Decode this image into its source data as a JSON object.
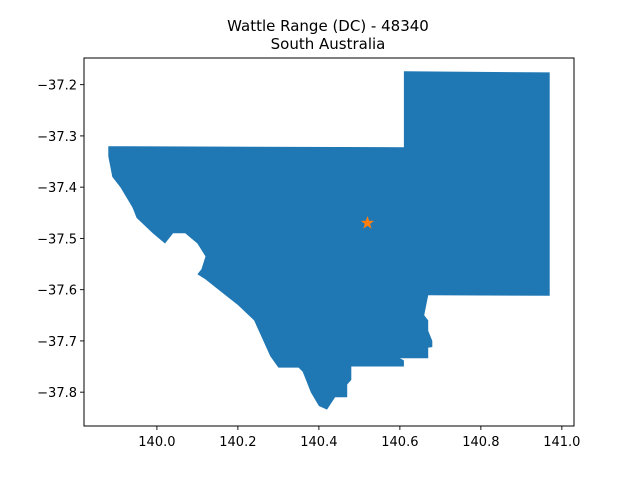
{
  "figure": {
    "title_line1": "Wattle Range (DC) - 48340",
    "title_line2": "South Australia"
  },
  "map": {
    "x_range": [
      139.82,
      141.03
    ],
    "y_range": [
      -37.866,
      -37.148
    ],
    "x_ticks": [
      140.0,
      140.2,
      140.4,
      140.6,
      140.8,
      141.0
    ],
    "x_tick_labels": [
      "140.0",
      "140.2",
      "140.4",
      "140.6",
      "140.8",
      "141.0"
    ],
    "y_ticks": [
      -37.2,
      -37.3,
      -37.4,
      -37.5,
      -37.6,
      -37.7,
      -37.8
    ],
    "y_tick_labels": [
      "−37.2",
      "−37.3",
      "−37.4",
      "−37.5",
      "−37.6",
      "−37.7",
      "−37.8"
    ],
    "region_color": "#1f77b4",
    "marker_color": "#ff7f0e",
    "marker_icon": "star-icon",
    "marker_position": {
      "lon": 140.52,
      "lat": -37.47
    },
    "region_outline": [
      [
        140.61,
        -37.174
      ],
      [
        140.97,
        -37.176
      ],
      [
        140.97,
        -37.612
      ],
      [
        140.67,
        -37.611
      ],
      [
        140.66,
        -37.65
      ],
      [
        140.67,
        -37.66
      ],
      [
        140.67,
        -37.68
      ],
      [
        140.68,
        -37.7
      ],
      [
        140.68,
        -37.712
      ],
      [
        140.67,
        -37.713
      ],
      [
        140.67,
        -37.734
      ],
      [
        140.6,
        -37.734
      ],
      [
        140.61,
        -37.738
      ],
      [
        140.61,
        -37.75
      ],
      [
        140.48,
        -37.75
      ],
      [
        140.48,
        -37.776
      ],
      [
        140.47,
        -37.785
      ],
      [
        140.47,
        -37.81
      ],
      [
        140.44,
        -37.81
      ],
      [
        140.42,
        -37.834
      ],
      [
        140.4,
        -37.827
      ],
      [
        140.38,
        -37.8
      ],
      [
        140.36,
        -37.76
      ],
      [
        140.35,
        -37.752
      ],
      [
        140.3,
        -37.752
      ],
      [
        140.28,
        -37.73
      ],
      [
        140.24,
        -37.66
      ],
      [
        140.2,
        -37.63
      ],
      [
        140.16,
        -37.605
      ],
      [
        140.12,
        -37.58
      ],
      [
        140.1,
        -37.57
      ],
      [
        140.11,
        -37.56
      ],
      [
        140.12,
        -37.535
      ],
      [
        140.1,
        -37.51
      ],
      [
        140.07,
        -37.49
      ],
      [
        140.04,
        -37.49
      ],
      [
        140.02,
        -37.51
      ],
      [
        139.99,
        -37.49
      ],
      [
        139.95,
        -37.46
      ],
      [
        139.94,
        -37.44
      ],
      [
        139.91,
        -37.4
      ],
      [
        139.89,
        -37.38
      ],
      [
        139.88,
        -37.34
      ],
      [
        139.88,
        -37.32
      ],
      [
        140.61,
        -37.322
      ]
    ]
  }
}
